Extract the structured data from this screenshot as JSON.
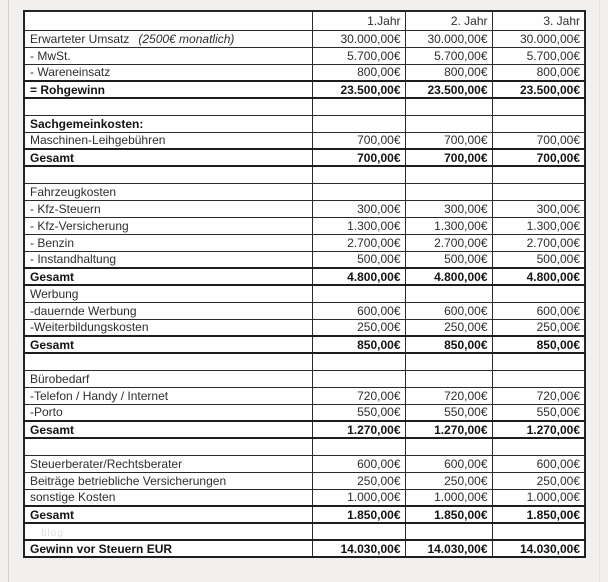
{
  "colors": {
    "page_bg": "#f1f0ee",
    "cell_bg": "#fefefe",
    "border": "#2a2a2a",
    "total_border": "#1d1d1d",
    "text": "#2e2e2e",
    "watermark": "#e0e0e0"
  },
  "table": {
    "columns": [
      "",
      "1.Jahr",
      "2. Jahr",
      "3. Jahr"
    ],
    "rows": [
      {
        "label": "Erwarteter Umsatz",
        "note": "(2500€ monatlich)",
        "values": [
          "30.000,00€",
          "30.000,00€",
          "30.000,00€"
        ]
      },
      {
        "label": "- MwSt.",
        "values": [
          "5.700,00€",
          "5.700,00€",
          "5.700,00€"
        ]
      },
      {
        "label": "- Wareneinsatz",
        "values": [
          "800,00€",
          "800,00€",
          "800,00€"
        ]
      },
      {
        "label": "= Rohgewinn",
        "bold": true,
        "total": true,
        "values": [
          "23.500,00€",
          "23.500,00€",
          "23.500,00€"
        ]
      },
      {
        "label": "",
        "values": [
          "",
          "",
          ""
        ]
      },
      {
        "label": "Sachgemeinkosten:",
        "bold": true,
        "values": [
          "",
          "",
          ""
        ]
      },
      {
        "label": "Maschinen-Leihgebühren",
        "values": [
          "700,00€",
          "700,00€",
          "700,00€"
        ]
      },
      {
        "label": "Gesamt",
        "bold": true,
        "total": true,
        "indent": 1,
        "values": [
          "700,00€",
          "700,00€",
          "700,00€"
        ]
      },
      {
        "label": "",
        "values": [
          "",
          "",
          ""
        ]
      },
      {
        "label": "Fahrzeugkosten",
        "values": [
          "",
          "",
          ""
        ]
      },
      {
        "label": "- Kfz-Steuern",
        "indent": 1,
        "values": [
          "300,00€",
          "300,00€",
          "300,00€"
        ]
      },
      {
        "label": "- Kfz-Versicherung",
        "indent": 1,
        "values": [
          "1.300,00€",
          "1.300,00€",
          "1.300,00€"
        ]
      },
      {
        "label": "- Benzin",
        "indent": 1,
        "values": [
          "2.700,00€",
          "2.700,00€",
          "2.700,00€"
        ]
      },
      {
        "label": "- Instandhaltung",
        "indent": 1,
        "values": [
          "500,00€",
          "500,00€",
          "500,00€"
        ]
      },
      {
        "label": "Gesamt",
        "bold": true,
        "total": true,
        "indent": 1,
        "values": [
          "4.800,00€",
          "4.800,00€",
          "4.800,00€"
        ]
      },
      {
        "label": "Werbung",
        "values": [
          "",
          "",
          ""
        ]
      },
      {
        "label": "-dauernde Werbung",
        "indent": 1,
        "values": [
          "600,00€",
          "600,00€",
          "600,00€"
        ]
      },
      {
        "label": "-Weiterbildungskosten",
        "indent": 1,
        "values": [
          "250,00€",
          "250,00€",
          "250,00€"
        ]
      },
      {
        "label": "Gesamt",
        "bold": true,
        "total": true,
        "indent": 1,
        "values": [
          "850,00€",
          "850,00€",
          "850,00€"
        ]
      },
      {
        "label": "",
        "values": [
          "",
          "",
          ""
        ]
      },
      {
        "label": "Bürobedarf",
        "values": [
          "",
          "",
          ""
        ]
      },
      {
        "label": "-Telefon / Handy / Internet",
        "indent": 1,
        "values": [
          "720,00€",
          "720,00€",
          "720,00€"
        ]
      },
      {
        "label": "-Porto",
        "indent": 1,
        "values": [
          "550,00€",
          "550,00€",
          "550,00€"
        ]
      },
      {
        "label": "Gesamt",
        "bold": true,
        "total": true,
        "indent": 1,
        "values": [
          "1.270,00€",
          "1.270,00€",
          "1.270,00€"
        ]
      },
      {
        "label": "",
        "values": [
          "",
          "",
          ""
        ]
      },
      {
        "label": "Steuerberater/Rechtsberater",
        "values": [
          "600,00€",
          "600,00€",
          "600,00€"
        ]
      },
      {
        "label": "Beiträge betriebliche Versicherungen",
        "values": [
          "250,00€",
          "250,00€",
          "250,00€"
        ]
      },
      {
        "label": "sonstige Kosten",
        "values": [
          "1.000,00€",
          "1.000,00€",
          "1.000,00€"
        ]
      },
      {
        "label": "Gesamt",
        "bold": true,
        "total": true,
        "indent": 1,
        "values": [
          "1.850,00€",
          "1.850,00€",
          "1.850,00€"
        ]
      },
      {
        "label": "",
        "watermark": "blog",
        "values": [
          "",
          "",
          ""
        ]
      },
      {
        "label": "Gewinn vor Steuern EUR",
        "bold": true,
        "total": true,
        "values": [
          "14.030,00€",
          "14.030,00€",
          "14.030,00€"
        ]
      }
    ]
  }
}
